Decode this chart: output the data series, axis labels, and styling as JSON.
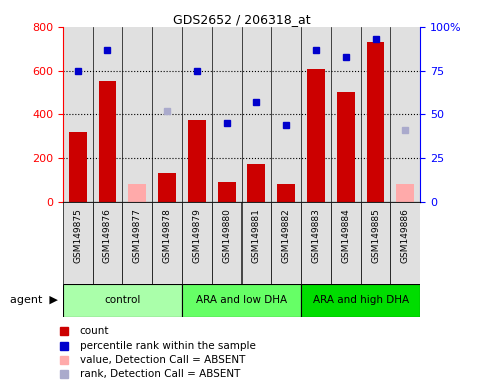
{
  "title": "GDS2652 / 206318_at",
  "samples": [
    "GSM149875",
    "GSM149876",
    "GSM149877",
    "GSM149878",
    "GSM149879",
    "GSM149880",
    "GSM149881",
    "GSM149882",
    "GSM149883",
    "GSM149884",
    "GSM149885",
    "GSM149886"
  ],
  "counts": [
    320,
    550,
    null,
    130,
    375,
    90,
    170,
    80,
    605,
    500,
    730,
    null
  ],
  "counts_absent": [
    null,
    null,
    80,
    null,
    null,
    null,
    null,
    null,
    null,
    null,
    null,
    80
  ],
  "percentile_ranks": [
    75,
    87,
    null,
    null,
    75,
    45,
    57,
    44,
    87,
    83,
    93,
    null
  ],
  "percentile_ranks_absent": [
    null,
    null,
    null,
    52,
    null,
    null,
    null,
    null,
    null,
    null,
    null,
    41
  ],
  "absent_mask_count": [
    false,
    false,
    true,
    false,
    false,
    false,
    false,
    false,
    false,
    false,
    false,
    true
  ],
  "absent_mask_rank": [
    false,
    false,
    false,
    true,
    false,
    false,
    false,
    false,
    false,
    false,
    false,
    true
  ],
  "groups": [
    {
      "label": "control",
      "start": 0,
      "end": 3,
      "color": "#aaffaa"
    },
    {
      "label": "ARA and low DHA",
      "start": 4,
      "end": 7,
      "color": "#66ff66"
    },
    {
      "label": "ARA and high DHA",
      "start": 8,
      "end": 11,
      "color": "#00dd00"
    }
  ],
  "bar_color_present": "#cc0000",
  "bar_color_absent": "#ffaaaa",
  "dot_color_present": "#0000cc",
  "dot_color_absent": "#aaaacc",
  "ylim_left": [
    0,
    800
  ],
  "ylim_right": [
    0,
    100
  ],
  "yticks_left": [
    0,
    200,
    400,
    600,
    800
  ],
  "yticks_right": [
    0,
    25,
    50,
    75,
    100
  ],
  "ytick_labels_right": [
    "0",
    "25",
    "50",
    "75",
    "100%"
  ],
  "background_color": "#ffffff",
  "plot_bg_color": "#e0e0e0",
  "legend_items": [
    {
      "color": "#cc0000",
      "label": "count"
    },
    {
      "color": "#0000cc",
      "label": "percentile rank within the sample"
    },
    {
      "color": "#ffaaaa",
      "label": "value, Detection Call = ABSENT"
    },
    {
      "color": "#aaaacc",
      "label": "rank, Detection Call = ABSENT"
    }
  ]
}
